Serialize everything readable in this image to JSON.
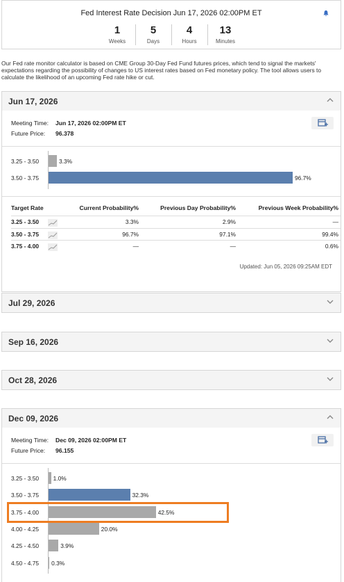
{
  "header": {
    "title": "Fed Interest Rate Decision Jun 17, 2026 02:00PM ET",
    "countdown": [
      {
        "value": "1",
        "unit": "Weeks"
      },
      {
        "value": "5",
        "unit": "Days"
      },
      {
        "value": "4",
        "unit": "Hours"
      },
      {
        "value": "13",
        "unit": "Minutes"
      }
    ]
  },
  "description": "Our Fed rate monitor calculator is based on CME Group 30-Day Fed Fund futures prices, which tend to signal the markets' expectations regarding the possibility of changes to US interest rates based on Fed monetary policy. The tool allows users to calculate the likelihood of an upcoming Fed rate hike or cut.",
  "meetings": [
    {
      "date": "Jun 17, 2026",
      "meeting_time_label": "Meeting Time:",
      "meeting_time": "Jun 17, 2026 02:00PM ET",
      "future_price_label": "Future Price:",
      "future_price": "96.378",
      "bars": [
        {
          "range": "3.25 - 3.50",
          "value": 3.3,
          "label": "3.3%",
          "color": "#a9a9a9"
        },
        {
          "range": "3.50 - 3.75",
          "value": 96.7,
          "label": "96.7%",
          "color": "#5b7fae"
        }
      ],
      "table": {
        "columns": [
          "Target Rate",
          "Current Probability%",
          "Previous Day Probability%",
          "Previous Week Probability%"
        ],
        "rows": [
          [
            "3.25 - 3.50",
            "3.3%",
            "2.9%",
            "—"
          ],
          [
            "3.50 - 3.75",
            "96.7%",
            "97.1%",
            "99.4%"
          ],
          [
            "3.75 - 4.00",
            "—",
            "—",
            "0.6%"
          ]
        ]
      },
      "updated": "Updated: Jun 05, 2026 09:25AM EDT"
    },
    {
      "date": "Jul 29, 2026"
    },
    {
      "date": "Sep 16, 2026"
    },
    {
      "date": "Oct 28, 2026"
    },
    {
      "date": "Dec 09, 2026",
      "meeting_time_label": "Meeting Time:",
      "meeting_time": "Dec 09, 2026 02:00PM ET",
      "future_price_label": "Future Price:",
      "future_price": "96.155",
      "bars": [
        {
          "range": "3.25 - 3.50",
          "value": 1.0,
          "label": "1.0%",
          "color": "#a9a9a9"
        },
        {
          "range": "3.50 - 3.75",
          "value": 32.3,
          "label": "32.3%",
          "color": "#5b7fae"
        },
        {
          "range": "3.75 - 4.00",
          "value": 42.5,
          "label": "42.5%",
          "color": "#a9a9a9"
        },
        {
          "range": "4.00 - 4.25",
          "value": 20.0,
          "label": "20.0%",
          "color": "#a9a9a9"
        },
        {
          "range": "4.25 - 4.50",
          "value": 3.9,
          "label": "3.9%",
          "color": "#a9a9a9"
        },
        {
          "range": "4.50 - 4.75",
          "value": 0.3,
          "label": "0.3%",
          "color": "#a9a9a9"
        }
      ]
    }
  ]
}
